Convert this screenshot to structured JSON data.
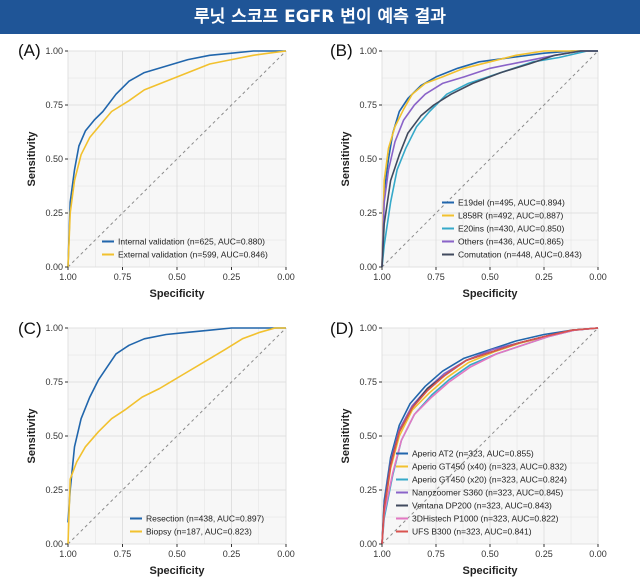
{
  "header": {
    "title": "루닛 스코프 EGFR 변이 예측 결과"
  },
  "colors": {
    "banner": "#1f5597",
    "panel_bg": "#f7f7f7",
    "grid": "#e0e0e0",
    "diagonal": "#8c8c8c"
  },
  "chart_data": [
    {
      "type": "line",
      "panel_label": "(A)",
      "xlabel": "Specificity",
      "ylabel": "Sensitivity",
      "x_reversed": true,
      "xlim": [
        1.0,
        0.0
      ],
      "ylim": [
        0.0,
        1.0
      ],
      "x_ticks": [
        "1.00",
        "0.75",
        "0.50",
        "0.25",
        "0.00"
      ],
      "y_ticks": [
        "0.00",
        "0.25",
        "0.50",
        "0.75",
        "1.00"
      ],
      "grid": true,
      "legend_position": "bottom-right",
      "reference_line": "diagonal",
      "series": [
        {
          "name": "Internal validation (n=625, AUC=0.880)",
          "color": "#2166ac",
          "specificity": [
            1.0,
            0.99,
            0.97,
            0.95,
            0.92,
            0.88,
            0.84,
            0.78,
            0.72,
            0.65,
            0.55,
            0.45,
            0.35,
            0.25,
            0.15,
            0.05,
            0.0
          ],
          "sensitivity": [
            0.0,
            0.3,
            0.45,
            0.56,
            0.63,
            0.68,
            0.72,
            0.8,
            0.86,
            0.9,
            0.93,
            0.96,
            0.98,
            0.99,
            1.0,
            1.0,
            1.0
          ]
        },
        {
          "name": "External validation (n=599, AUC=0.846)",
          "color": "#f2c12e",
          "specificity": [
            1.0,
            0.99,
            0.97,
            0.94,
            0.9,
            0.85,
            0.8,
            0.72,
            0.65,
            0.55,
            0.45,
            0.35,
            0.25,
            0.15,
            0.08,
            0.0
          ],
          "sensitivity": [
            0.0,
            0.25,
            0.4,
            0.52,
            0.6,
            0.66,
            0.72,
            0.77,
            0.82,
            0.86,
            0.9,
            0.94,
            0.96,
            0.98,
            0.99,
            1.0
          ]
        }
      ]
    },
    {
      "type": "line",
      "panel_label": "(B)",
      "xlabel": "Specificity",
      "ylabel": "Sensitivity",
      "x_reversed": true,
      "xlim": [
        1.0,
        0.0
      ],
      "ylim": [
        0.0,
        1.0
      ],
      "x_ticks": [
        "1.00",
        "0.75",
        "0.50",
        "0.25",
        "0.00"
      ],
      "y_ticks": [
        "0.00",
        "0.25",
        "0.50",
        "0.75",
        "1.00"
      ],
      "grid": true,
      "legend_position": "bottom-right",
      "reference_line": "diagonal",
      "series": [
        {
          "name": "E19del (n=495, AUC=0.894)",
          "color": "#2166ac",
          "specificity": [
            1.0,
            0.99,
            0.97,
            0.95,
            0.92,
            0.88,
            0.82,
            0.75,
            0.65,
            0.55,
            0.4,
            0.25,
            0.12,
            0.0
          ],
          "sensitivity": [
            0.0,
            0.35,
            0.5,
            0.62,
            0.72,
            0.78,
            0.84,
            0.88,
            0.92,
            0.95,
            0.97,
            0.99,
            1.0,
            1.0
          ]
        },
        {
          "name": "L858R (n=492, AUC=0.887)",
          "color": "#f2c12e",
          "specificity": [
            1.0,
            0.99,
            0.97,
            0.94,
            0.9,
            0.86,
            0.8,
            0.72,
            0.62,
            0.5,
            0.38,
            0.25,
            0.12,
            0.0
          ],
          "sensitivity": [
            0.0,
            0.4,
            0.55,
            0.65,
            0.73,
            0.8,
            0.85,
            0.88,
            0.92,
            0.95,
            0.98,
            1.0,
            1.0,
            1.0
          ]
        },
        {
          "name": "E20ins (n=430, AUC=0.850)",
          "color": "#35a9c9",
          "specificity": [
            1.0,
            0.99,
            0.96,
            0.93,
            0.89,
            0.84,
            0.78,
            0.7,
            0.6,
            0.45,
            0.3,
            0.18,
            0.05,
            0.0
          ],
          "sensitivity": [
            0.0,
            0.1,
            0.3,
            0.45,
            0.55,
            0.65,
            0.72,
            0.8,
            0.85,
            0.9,
            0.95,
            0.97,
            1.0,
            1.0
          ]
        },
        {
          "name": "Others (n=436, AUC=0.865)",
          "color": "#8a63c8",
          "specificity": [
            1.0,
            0.99,
            0.97,
            0.94,
            0.9,
            0.85,
            0.8,
            0.72,
            0.62,
            0.5,
            0.35,
            0.2,
            0.08,
            0.0
          ],
          "sensitivity": [
            0.0,
            0.3,
            0.45,
            0.58,
            0.68,
            0.75,
            0.8,
            0.85,
            0.88,
            0.92,
            0.95,
            0.98,
            1.0,
            1.0
          ]
        },
        {
          "name": "Comutation (n=448, AUC=0.843)",
          "color": "#404a5e",
          "specificity": [
            1.0,
            0.99,
            0.96,
            0.92,
            0.88,
            0.82,
            0.76,
            0.68,
            0.58,
            0.45,
            0.32,
            0.2,
            0.08,
            0.0
          ],
          "sensitivity": [
            0.0,
            0.2,
            0.4,
            0.52,
            0.62,
            0.7,
            0.75,
            0.8,
            0.85,
            0.9,
            0.94,
            0.98,
            1.0,
            1.0
          ]
        }
      ]
    },
    {
      "type": "line",
      "panel_label": "(C)",
      "xlabel": "Specificity",
      "ylabel": "Sensitivity",
      "x_reversed": true,
      "xlim": [
        1.0,
        0.0
      ],
      "ylim": [
        0.0,
        1.0
      ],
      "x_ticks": [
        "1.00",
        "0.75",
        "0.50",
        "0.25",
        "0.00"
      ],
      "y_ticks": [
        "0.00",
        "0.25",
        "0.50",
        "0.75",
        "1.00"
      ],
      "grid": true,
      "legend_position": "bottom-right",
      "reference_line": "diagonal",
      "series": [
        {
          "name": "Resection (n=438, AUC=0.897)",
          "color": "#2166ac",
          "specificity": [
            1.0,
            0.99,
            0.97,
            0.94,
            0.9,
            0.86,
            0.82,
            0.78,
            0.72,
            0.65,
            0.55,
            0.45,
            0.35,
            0.25,
            0.15,
            0.0
          ],
          "sensitivity": [
            0.1,
            0.25,
            0.45,
            0.58,
            0.68,
            0.76,
            0.82,
            0.88,
            0.92,
            0.95,
            0.97,
            0.98,
            0.99,
            1.0,
            1.0,
            1.0
          ]
        },
        {
          "name": "Biopsy (n=187, AUC=0.823)",
          "color": "#f2c12e",
          "specificity": [
            1.0,
            0.99,
            0.96,
            0.92,
            0.86,
            0.8,
            0.74,
            0.66,
            0.58,
            0.48,
            0.38,
            0.28,
            0.2,
            0.12,
            0.05,
            0.0
          ],
          "sensitivity": [
            0.0,
            0.3,
            0.38,
            0.45,
            0.52,
            0.58,
            0.62,
            0.68,
            0.72,
            0.78,
            0.84,
            0.9,
            0.95,
            0.98,
            1.0,
            1.0
          ]
        }
      ]
    },
    {
      "type": "line",
      "panel_label": "(D)",
      "xlabel": "Specificity",
      "ylabel": "Sensitivity",
      "x_reversed": true,
      "xlim": [
        1.0,
        0.0
      ],
      "ylim": [
        0.0,
        1.0
      ],
      "x_ticks": [
        "1.00",
        "0.75",
        "0.50",
        "0.25",
        "0.00"
      ],
      "y_ticks": [
        "0.00",
        "0.25",
        "0.50",
        "0.75",
        "1.00"
      ],
      "grid": true,
      "legend_position": "bottom-right",
      "reference_line": "diagonal",
      "series": [
        {
          "name": "Aperio AT2 (n=323, AUC=0.855)",
          "color": "#2166ac",
          "specificity": [
            1.0,
            0.99,
            0.96,
            0.92,
            0.87,
            0.8,
            0.72,
            0.62,
            0.5,
            0.38,
            0.25,
            0.12,
            0.0
          ],
          "sensitivity": [
            0.0,
            0.2,
            0.4,
            0.55,
            0.65,
            0.73,
            0.8,
            0.86,
            0.9,
            0.94,
            0.97,
            0.99,
            1.0
          ]
        },
        {
          "name": "Aperio GT450 (x40) (n=323, AUC=0.832)",
          "color": "#f2c12e",
          "specificity": [
            1.0,
            0.99,
            0.96,
            0.92,
            0.86,
            0.78,
            0.7,
            0.6,
            0.48,
            0.36,
            0.24,
            0.12,
            0.0
          ],
          "sensitivity": [
            0.0,
            0.15,
            0.35,
            0.5,
            0.62,
            0.7,
            0.77,
            0.84,
            0.89,
            0.93,
            0.96,
            0.99,
            1.0
          ]
        },
        {
          "name": "Aperio GT450 (x20) (n=323, AUC=0.824)",
          "color": "#35a9c9",
          "specificity": [
            1.0,
            0.99,
            0.95,
            0.91,
            0.85,
            0.77,
            0.69,
            0.59,
            0.47,
            0.35,
            0.23,
            0.11,
            0.0
          ],
          "sensitivity": [
            0.0,
            0.12,
            0.32,
            0.48,
            0.6,
            0.69,
            0.76,
            0.83,
            0.88,
            0.92,
            0.96,
            0.99,
            1.0
          ]
        },
        {
          "name": "Nanozoomer S360 (n=323, AUC=0.845)",
          "color": "#8a63c8",
          "specificity": [
            1.0,
            0.99,
            0.96,
            0.92,
            0.86,
            0.79,
            0.71,
            0.61,
            0.49,
            0.37,
            0.25,
            0.12,
            0.0
          ],
          "sensitivity": [
            0.0,
            0.18,
            0.38,
            0.53,
            0.64,
            0.72,
            0.79,
            0.85,
            0.9,
            0.93,
            0.96,
            0.99,
            1.0
          ]
        },
        {
          "name": "Ventana DP200 (n=323, AUC=0.843)",
          "color": "#404a5e",
          "specificity": [
            1.0,
            0.99,
            0.96,
            0.92,
            0.86,
            0.79,
            0.71,
            0.61,
            0.49,
            0.37,
            0.25,
            0.12,
            0.0
          ],
          "sensitivity": [
            0.0,
            0.17,
            0.37,
            0.52,
            0.63,
            0.72,
            0.78,
            0.85,
            0.89,
            0.93,
            0.96,
            0.99,
            1.0
          ]
        },
        {
          "name": "3DHistech P1000 (n=323, AUC=0.822)",
          "color": "#e377c2",
          "specificity": [
            1.0,
            0.99,
            0.95,
            0.91,
            0.85,
            0.77,
            0.69,
            0.59,
            0.47,
            0.35,
            0.23,
            0.11,
            0.0
          ],
          "sensitivity": [
            0.0,
            0.14,
            0.33,
            0.48,
            0.6,
            0.68,
            0.75,
            0.82,
            0.88,
            0.92,
            0.96,
            0.99,
            1.0
          ]
        },
        {
          "name": "UFS B300 (n=323, AUC=0.841)",
          "color": "#d9534f",
          "specificity": [
            1.0,
            0.99,
            0.96,
            0.92,
            0.86,
            0.79,
            0.71,
            0.61,
            0.49,
            0.37,
            0.25,
            0.12,
            0.0
          ],
          "sensitivity": [
            0.0,
            0.16,
            0.36,
            0.52,
            0.63,
            0.71,
            0.78,
            0.85,
            0.89,
            0.93,
            0.96,
            0.99,
            1.0
          ]
        }
      ]
    }
  ]
}
